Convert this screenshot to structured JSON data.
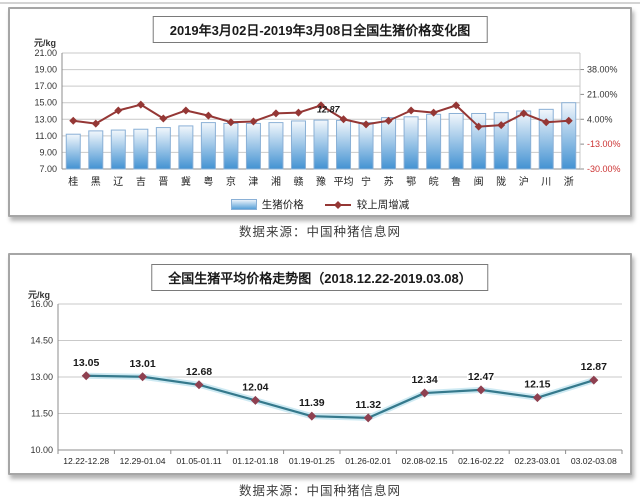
{
  "page": {
    "source_note_top": "数据来源：中国种猪信息网",
    "source_note_bottom": "数据来源：中国种猪信息网"
  },
  "colors": {
    "bar_gradient_top": "#f2f7fc",
    "bar_gradient_bottom": "#4392d2",
    "bar_border": "#8ab0d6",
    "top_line": "#953735",
    "bottom_line": "#35798c",
    "bottom_line_halo": "#c9e8f2",
    "bottom_marker": "#8e4050",
    "grid": "#c9c9c9",
    "axis": "#8c8c8c",
    "tick_text": "#333333",
    "negative_tick_text": "#cc3333"
  },
  "chart_data": [
    {
      "type": "bar",
      "title": "2019年3月02日-2019年3月08日全国生猪价格变化图",
      "y_axis_label": "元/kg",
      "legend_position": "bottom",
      "grid": true,
      "categories": [
        "桂",
        "黑",
        "辽",
        "吉",
        "晋",
        "冀",
        "粤",
        "京",
        "津",
        "湘",
        "赣",
        "豫",
        "平均",
        "宁",
        "苏",
        "鄂",
        "皖",
        "鲁",
        "闽",
        "陇",
        "沪",
        "川",
        "浙"
      ],
      "series": [
        {
          "name": "生猪价格",
          "type": "bar",
          "axis": "left",
          "values": [
            11.2,
            11.6,
            11.7,
            11.8,
            12.0,
            12.2,
            12.6,
            12.5,
            12.5,
            12.6,
            12.8,
            12.9,
            12.87,
            12.6,
            13.2,
            13.3,
            13.6,
            13.7,
            13.7,
            13.8,
            14.0,
            14.2,
            15.0
          ]
        },
        {
          "name": "较上周增减",
          "type": "line",
          "axis": "right",
          "values": [
            3,
            1,
            10,
            14,
            4.5,
            10,
            6.5,
            2,
            2.5,
            8,
            8.5,
            13.5,
            4,
            0.5,
            3,
            10,
            8.5,
            13.5,
            -1,
            0,
            8,
            2,
            3
          ]
        }
      ],
      "left_axis": {
        "min": 7,
        "max": 21,
        "tick_values": [
          21,
          19,
          17,
          15,
          13,
          11,
          9,
          7
        ],
        "tick_labels": [
          "21.00",
          "19.00",
          "17.00",
          "15.00",
          "13.00",
          "11.00",
          "9.00",
          "7.00"
        ]
      },
      "right_axis": {
        "min": -30,
        "max": 49.3,
        "tick_values": [
          38,
          21,
          4,
          -13,
          -30
        ],
        "tick_labels": [
          "38.00%",
          "21.00%",
          "4.00%",
          "-13.00%",
          "-30.00%"
        ]
      },
      "annotation": {
        "text": "12.87",
        "category_index": 12
      }
    },
    {
      "type": "line",
      "title": "全国生猪平均价格走势图（2018.12.22-2019.03.08）",
      "y_axis_label": "元/kg",
      "grid": true,
      "categories": [
        "12.22-12.28",
        "12.29-01.04",
        "01.05-01.11",
        "01.12-01.18",
        "01.19-01.25",
        "01.26-02.01",
        "02.08-02.15",
        "02.16-02.22",
        "02.23-03.01",
        "03.02-03.08"
      ],
      "values": [
        13.05,
        13.01,
        12.68,
        12.04,
        11.39,
        11.32,
        12.34,
        12.47,
        12.15,
        12.87
      ],
      "data_labels": [
        "13.05",
        "13.01",
        "12.68",
        "12.04",
        "11.39",
        "11.32",
        "12.34",
        "12.47",
        "12.15",
        "12.87"
      ],
      "ylim": [
        10,
        16
      ],
      "y_axis": {
        "tick_values": [
          16,
          14.5,
          13,
          11.5,
          10
        ],
        "tick_labels": [
          "16.00",
          "14.50",
          "13.00",
          "11.50",
          "10.00"
        ]
      }
    }
  ]
}
